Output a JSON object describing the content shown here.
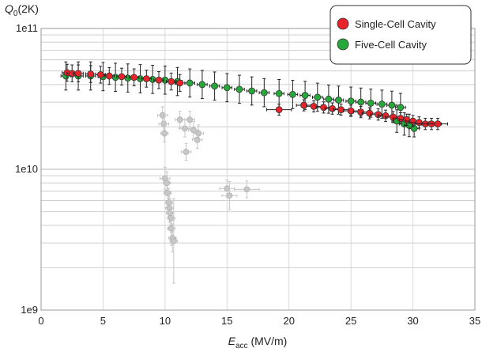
{
  "chart_data": {
    "type": "scatter",
    "title": "",
    "ylabel": {
      "main": "Q",
      "sub": "0",
      "rest": "(2K)"
    },
    "xlabel": {
      "main": "E",
      "sub": "acc",
      "rest": " (MV/m)"
    },
    "xlim": [
      0,
      35
    ],
    "ylim": [
      1000000000,
      100000000000
    ],
    "yscale": "log",
    "grid": {
      "horizontal": true,
      "vertical": true
    },
    "x_ticks": [
      "0",
      "5",
      "10",
      "15",
      "20",
      "25",
      "30",
      "35"
    ],
    "x_tick_values": [
      0,
      5,
      10,
      15,
      20,
      25,
      30,
      35
    ],
    "y_ticks": [
      "1e9",
      "1e10",
      "1e11"
    ],
    "y_tick_values": [
      1000000000,
      10000000000,
      100000000000
    ],
    "legend": {
      "position": "top-right",
      "entries": [
        {
          "label": "Single-Cell Cavity",
          "color": "#e8232b"
        },
        {
          "label": "Five-Cell Cavity",
          "color": "#27a83a"
        }
      ]
    },
    "series": [
      {
        "name": "Single-Cell Cavity",
        "color": "#e8232b",
        "points": [
          {
            "x": 2.1,
            "y": 48500000000.0,
            "xerr": 0.4,
            "yerr": 0.06
          },
          {
            "x": 2.5,
            "y": 48000000000.0,
            "xerr": 0.4,
            "yerr": 0.06
          },
          {
            "x": 3.0,
            "y": 48000000000.0,
            "xerr": 0.4,
            "yerr": 0.06
          },
          {
            "x": 4.0,
            "y": 47500000000.0,
            "xerr": 0.4,
            "yerr": 0.06
          },
          {
            "x": 4.8,
            "y": 47000000000.0,
            "xerr": 0.4,
            "yerr": 0.06
          },
          {
            "x": 5.5,
            "y": 46000000000.0,
            "xerr": 0.4,
            "yerr": 0.06
          },
          {
            "x": 6.5,
            "y": 45500000000.0,
            "xerr": 0.4,
            "yerr": 0.06
          },
          {
            "x": 7.5,
            "y": 45000000000.0,
            "xerr": 0.4,
            "yerr": 0.06
          },
          {
            "x": 8.5,
            "y": 44000000000.0,
            "xerr": 0.4,
            "yerr": 0.06
          },
          {
            "x": 9.5,
            "y": 43000000000.0,
            "xerr": 0.4,
            "yerr": 0.06
          },
          {
            "x": 10.5,
            "y": 42000000000.0,
            "xerr": 0.4,
            "yerr": 0.06
          },
          {
            "x": 11.2,
            "y": 41000000000.0,
            "xerr": 0.4,
            "yerr": 0.06
          },
          {
            "x": 19.2,
            "y": 26500000000.0,
            "xerr": 1.0,
            "yerr": 0.04
          },
          {
            "x": 21.2,
            "y": 28500000000.0,
            "xerr": 0.6,
            "yerr": 0.04
          },
          {
            "x": 22.0,
            "y": 28000000000.0,
            "xerr": 0.6,
            "yerr": 0.04
          },
          {
            "x": 22.8,
            "y": 27500000000.0,
            "xerr": 0.6,
            "yerr": 0.04
          },
          {
            "x": 23.5,
            "y": 27000000000.0,
            "xerr": 0.6,
            "yerr": 0.04
          },
          {
            "x": 24.2,
            "y": 26500000000.0,
            "xerr": 0.6,
            "yerr": 0.04
          },
          {
            "x": 25.0,
            "y": 26000000000.0,
            "xerr": 0.6,
            "yerr": 0.04
          },
          {
            "x": 25.8,
            "y": 25500000000.0,
            "xerr": 0.6,
            "yerr": 0.04
          },
          {
            "x": 26.5,
            "y": 25000000000.0,
            "xerr": 0.6,
            "yerr": 0.04
          },
          {
            "x": 27.2,
            "y": 24500000000.0,
            "xerr": 0.6,
            "yerr": 0.04
          },
          {
            "x": 27.8,
            "y": 24000000000.0,
            "xerr": 0.6,
            "yerr": 0.04
          },
          {
            "x": 28.4,
            "y": 23500000000.0,
            "xerr": 0.6,
            "yerr": 0.04
          },
          {
            "x": 29.0,
            "y": 23000000000.0,
            "xerr": 0.6,
            "yerr": 0.04
          },
          {
            "x": 29.5,
            "y": 22500000000.0,
            "xerr": 0.6,
            "yerr": 0.04
          },
          {
            "x": 30.0,
            "y": 22000000000.0,
            "xerr": 0.6,
            "yerr": 0.04
          },
          {
            "x": 30.5,
            "y": 21500000000.0,
            "xerr": 0.8,
            "yerr": 0.04
          },
          {
            "x": 31.0,
            "y": 21000000000.0,
            "xerr": 0.8,
            "yerr": 0.04
          },
          {
            "x": 31.5,
            "y": 21000000000.0,
            "xerr": 0.8,
            "yerr": 0.04
          },
          {
            "x": 32.0,
            "y": 21000000000.0,
            "xerr": 0.8,
            "yerr": 0.04
          }
        ]
      },
      {
        "name": "Five-Cell Cavity",
        "color": "#27a83a",
        "points": [
          {
            "x": 2.0,
            "y": 46000000000.0,
            "xerr": 0.4,
            "yerr": 0.1
          },
          {
            "x": 3.0,
            "y": 46000000000.0,
            "xerr": 0.4,
            "yerr": 0.1
          },
          {
            "x": 4.0,
            "y": 46000000000.0,
            "xerr": 0.4,
            "yerr": 0.1
          },
          {
            "x": 5.0,
            "y": 45500000000.0,
            "xerr": 0.4,
            "yerr": 0.1
          },
          {
            "x": 6.0,
            "y": 45000000000.0,
            "xerr": 0.4,
            "yerr": 0.1
          },
          {
            "x": 7.0,
            "y": 44500000000.0,
            "xerr": 0.4,
            "yerr": 0.1
          },
          {
            "x": 8.0,
            "y": 44000000000.0,
            "xerr": 0.4,
            "yerr": 0.1
          },
          {
            "x": 9.0,
            "y": 43500000000.0,
            "xerr": 0.4,
            "yerr": 0.1
          },
          {
            "x": 10.0,
            "y": 43000000000.0,
            "xerr": 0.4,
            "yerr": 0.1
          },
          {
            "x": 11.0,
            "y": 42000000000.0,
            "xerr": 0.4,
            "yerr": 0.1
          },
          {
            "x": 12.0,
            "y": 41000000000.0,
            "xerr": 0.4,
            "yerr": 0.1
          },
          {
            "x": 13.0,
            "y": 40000000000.0,
            "xerr": 0.4,
            "yerr": 0.1
          },
          {
            "x": 14.0,
            "y": 39000000000.0,
            "xerr": 0.4,
            "yerr": 0.1
          },
          {
            "x": 15.0,
            "y": 38000000000.0,
            "xerr": 0.4,
            "yerr": 0.1
          },
          {
            "x": 16.0,
            "y": 37000000000.0,
            "xerr": 0.4,
            "yerr": 0.1
          },
          {
            "x": 17.0,
            "y": 36000000000.0,
            "xerr": 0.4,
            "yerr": 0.1
          },
          {
            "x": 18.0,
            "y": 35000000000.0,
            "xerr": 0.4,
            "yerr": 0.1
          },
          {
            "x": 19.2,
            "y": 34500000000.0,
            "xerr": 0.4,
            "yerr": 0.1
          },
          {
            "x": 20.3,
            "y": 34000000000.0,
            "xerr": 0.4,
            "yerr": 0.1
          },
          {
            "x": 21.3,
            "y": 33500000000.0,
            "xerr": 0.4,
            "yerr": 0.1
          },
          {
            "x": 22.3,
            "y": 32500000000.0,
            "xerr": 0.4,
            "yerr": 0.1
          },
          {
            "x": 23.2,
            "y": 31500000000.0,
            "xerr": 0.4,
            "yerr": 0.1
          },
          {
            "x": 24.0,
            "y": 31000000000.0,
            "xerr": 0.4,
            "yerr": 0.1
          },
          {
            "x": 25.0,
            "y": 30500000000.0,
            "xerr": 0.4,
            "yerr": 0.1
          },
          {
            "x": 25.8,
            "y": 30000000000.0,
            "xerr": 0.4,
            "yerr": 0.1
          },
          {
            "x": 26.6,
            "y": 29500000000.0,
            "xerr": 0.4,
            "yerr": 0.1
          },
          {
            "x": 27.5,
            "y": 29000000000.0,
            "xerr": 0.4,
            "yerr": 0.1
          },
          {
            "x": 28.3,
            "y": 28500000000.0,
            "xerr": 0.4,
            "yerr": 0.1
          },
          {
            "x": 29.0,
            "y": 27500000000.0,
            "xerr": 0.4,
            "yerr": 0.1
          },
          {
            "x": 28.7,
            "y": 22000000000.0,
            "xerr": 0.4,
            "yerr": 0.08
          },
          {
            "x": 29.3,
            "y": 21000000000.0,
            "xerr": 0.4,
            "yerr": 0.08
          },
          {
            "x": 29.7,
            "y": 20500000000.0,
            "xerr": 0.4,
            "yerr": 0.08
          },
          {
            "x": 30.1,
            "y": 19500000000.0,
            "xerr": 0.4,
            "yerr": 0.06
          }
        ]
      },
      {
        "name": "",
        "color": "#c8c8c8",
        "points": [
          {
            "x": 9.8,
            "y": 24200000000.0,
            "xerr": 0.4,
            "yerr": 0.06
          },
          {
            "x": 9.9,
            "y": 21000000000.0,
            "xerr": 0.4,
            "yerr": 0.06
          },
          {
            "x": 9.95,
            "y": 18000000000.0,
            "xerr": 0.3,
            "yerr": 0.06
          },
          {
            "x": 11.2,
            "y": 22500000000.0,
            "xerr": 0.4,
            "yerr": 0.06
          },
          {
            "x": 12.0,
            "y": 22500000000.0,
            "xerr": 0.4,
            "yerr": 0.06
          },
          {
            "x": 11.6,
            "y": 19500000000.0,
            "xerr": 0.4,
            "yerr": 0.06
          },
          {
            "x": 12.3,
            "y": 19000000000.0,
            "xerr": 0.4,
            "yerr": 0.06
          },
          {
            "x": 12.7,
            "y": 18000000000.0,
            "xerr": 0.4,
            "yerr": 0.06
          },
          {
            "x": 12.6,
            "y": 16200000000.0,
            "xerr": 0.4,
            "yerr": 0.06
          },
          {
            "x": 11.7,
            "y": 13300000000.0,
            "xerr": 0.4,
            "yerr": 0.06
          },
          {
            "x": 10.0,
            "y": 8600000000.0,
            "xerr": 0.4,
            "yerr": 0.08
          },
          {
            "x": 10.15,
            "y": 8000000000.0,
            "xerr": 0.3,
            "yerr": 0.08
          },
          {
            "x": 10.2,
            "y": 6800000000.0,
            "xerr": 0.3,
            "yerr": 0.1
          },
          {
            "x": 10.3,
            "y": 5800000000.0,
            "xerr": 0.3,
            "yerr": 0.1
          },
          {
            "x": 10.35,
            "y": 5300000000.0,
            "xerr": 0.3,
            "yerr": 0.1
          },
          {
            "x": 10.4,
            "y": 4900000000.0,
            "xerr": 0.3,
            "yerr": 0.1
          },
          {
            "x": 10.5,
            "y": 4500000000.0,
            "xerr": 0.3,
            "yerr": 0.1
          },
          {
            "x": 10.5,
            "y": 3800000000.0,
            "xerr": 0.3,
            "yerr": 0.12
          },
          {
            "x": 10.6,
            "y": 3250000000.0,
            "xerr": 0.3,
            "yerr": 0.1
          },
          {
            "x": 10.7,
            "y": 3100000000.0,
            "xerr": 0.3,
            "yerr": 0.3
          },
          {
            "x": 15.0,
            "y": 7300000000.0,
            "xerr": 0.6,
            "yerr": 0.06
          },
          {
            "x": 15.2,
            "y": 6500000000.0,
            "xerr": 0.6,
            "yerr": 0.1
          },
          {
            "x": 16.6,
            "y": 7200000000.0,
            "xerr": 1.0,
            "yerr": 0.06
          }
        ]
      }
    ]
  }
}
